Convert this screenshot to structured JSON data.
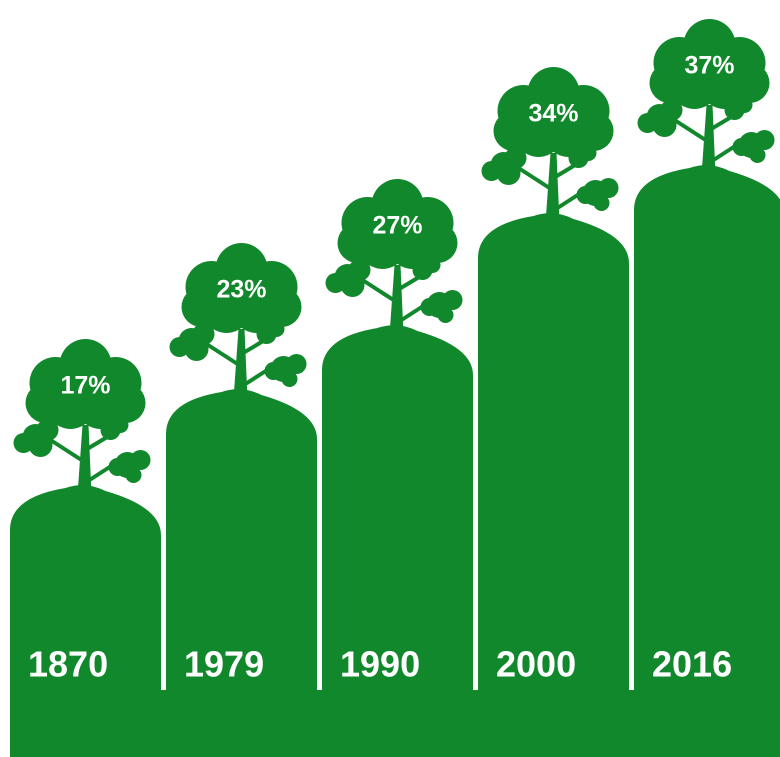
{
  "chart_data": {
    "type": "bar",
    "categories": [
      "1870",
      "1979",
      "1990",
      "2000",
      "2016"
    ],
    "values": [
      17,
      23,
      27,
      34,
      37
    ],
    "value_labels": [
      "17%",
      "23%",
      "27%",
      "34%",
      "37%"
    ],
    "color": "#12882c"
  }
}
